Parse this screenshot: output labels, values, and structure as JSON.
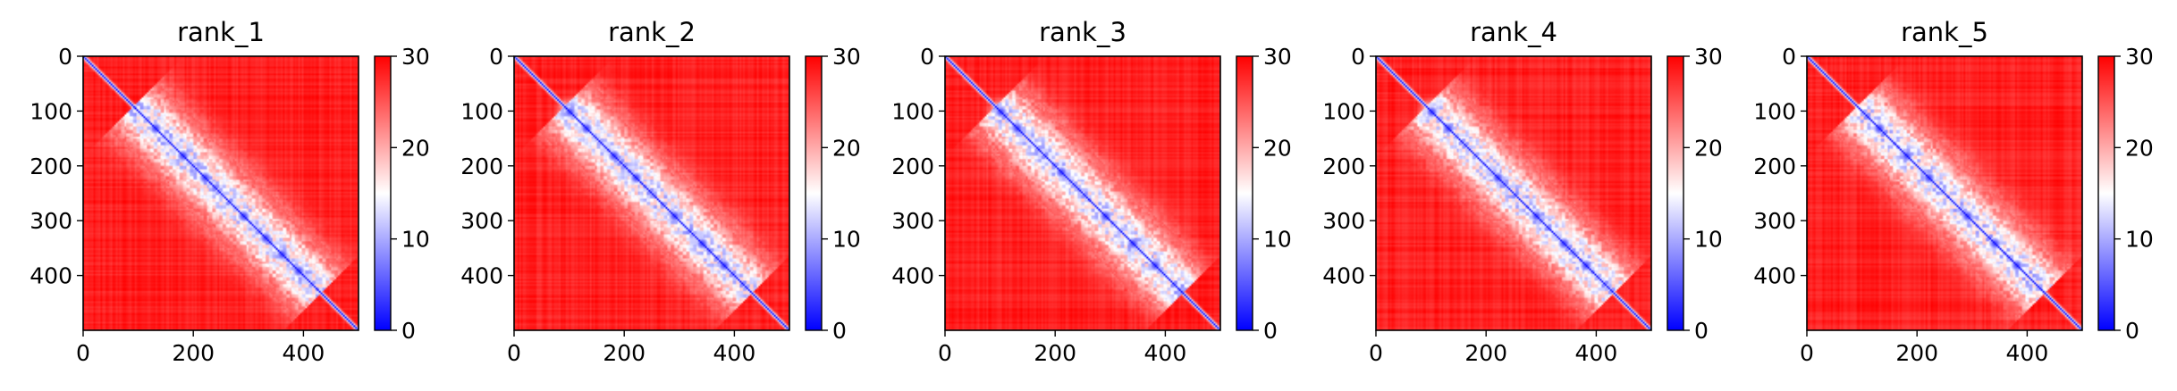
{
  "chart_data": [
    {
      "type": "heatmap",
      "title": "rank_1",
      "xlabel": "",
      "ylabel": "",
      "x_ticks": [
        "0",
        "200",
        "400"
      ],
      "y_ticks": [
        "0",
        "100",
        "200",
        "300",
        "400"
      ],
      "xlim": [
        0,
        500
      ],
      "ylim": [
        500,
        0
      ],
      "colorbar": {
        "range": [
          0,
          30
        ],
        "ticks": [
          "0",
          "10",
          "20",
          "30"
        ],
        "colormap": "bwr"
      },
      "notes": "Symmetric ~500x500 distance-error matrix; low values (blue) along diagonal, high (red, ~30) elsewhere; lighter structured region between ~100 and ~420.",
      "diagonal_domains": [
        [
          130,
          130
        ],
        [
          180,
          180
        ],
        [
          220,
          220
        ],
        [
          290,
          290
        ],
        [
          330,
          330
        ],
        [
          360,
          360
        ],
        [
          390,
          390
        ]
      ]
    },
    {
      "type": "heatmap",
      "title": "rank_2",
      "xlabel": "",
      "ylabel": "",
      "x_ticks": [
        "0",
        "200",
        "400"
      ],
      "y_ticks": [
        "0",
        "100",
        "200",
        "300",
        "400"
      ],
      "xlim": [
        0,
        500
      ],
      "ylim": [
        500,
        0
      ],
      "colorbar": {
        "range": [
          0,
          30
        ],
        "ticks": [
          "0",
          "10",
          "20",
          "30"
        ],
        "colormap": "bwr"
      },
      "diagonal_domains": [
        [
          100,
          100
        ],
        [
          130,
          130
        ],
        [
          180,
          180
        ],
        [
          220,
          220
        ],
        [
          290,
          290
        ],
        [
          340,
          340
        ],
        [
          380,
          380
        ]
      ]
    },
    {
      "type": "heatmap",
      "title": "rank_3",
      "xlabel": "",
      "ylabel": "",
      "x_ticks": [
        "0",
        "200",
        "400"
      ],
      "y_ticks": [
        "0",
        "100",
        "200",
        "300",
        "400"
      ],
      "xlim": [
        0,
        500
      ],
      "ylim": [
        500,
        0
      ],
      "colorbar": {
        "range": [
          0,
          30
        ],
        "ticks": [
          "0",
          "10",
          "20",
          "30"
        ],
        "colormap": "bwr"
      },
      "diagonal_domains": [
        [
          100,
          100
        ],
        [
          130,
          130
        ],
        [
          210,
          210
        ],
        [
          290,
          290
        ],
        [
          340,
          340
        ],
        [
          380,
          380
        ]
      ]
    },
    {
      "type": "heatmap",
      "title": "rank_4",
      "xlabel": "",
      "ylabel": "",
      "x_ticks": [
        "0",
        "200",
        "400"
      ],
      "y_ticks": [
        "0",
        "100",
        "200",
        "300",
        "400"
      ],
      "xlim": [
        0,
        500
      ],
      "ylim": [
        500,
        0
      ],
      "colorbar": {
        "range": [
          0,
          30
        ],
        "ticks": [
          "0",
          "10",
          "20",
          "30"
        ],
        "colormap": "bwr"
      },
      "diagonal_domains": [
        [
          100,
          100
        ],
        [
          130,
          130
        ],
        [
          220,
          220
        ],
        [
          290,
          290
        ],
        [
          340,
          340
        ],
        [
          380,
          380
        ]
      ]
    },
    {
      "type": "heatmap",
      "title": "rank_5",
      "xlabel": "",
      "ylabel": "",
      "x_ticks": [
        "0",
        "200",
        "400"
      ],
      "y_ticks": [
        "0",
        "100",
        "200",
        "300",
        "400"
      ],
      "xlim": [
        0,
        500
      ],
      "ylim": [
        500,
        0
      ],
      "colorbar": {
        "range": [
          0,
          30
        ],
        "ticks": [
          "0",
          "10",
          "20",
          "30"
        ],
        "colormap": "bwr"
      },
      "diagonal_domains": [
        [
          130,
          130
        ],
        [
          180,
          180
        ],
        [
          220,
          220
        ],
        [
          290,
          290
        ],
        [
          340,
          340
        ],
        [
          380,
          380
        ]
      ]
    }
  ],
  "colors": {
    "high": "#ff0000",
    "mid": "#ffffff",
    "low": "#0000ff",
    "axis": "#000000"
  }
}
